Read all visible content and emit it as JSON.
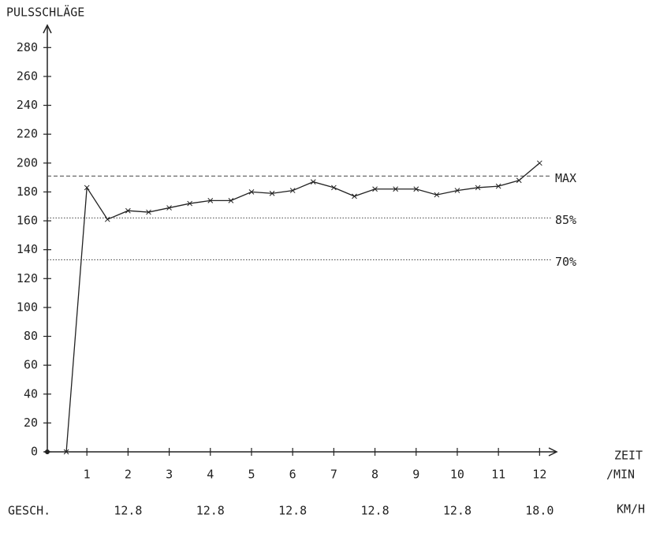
{
  "chart_data": {
    "type": "line",
    "title": "PULSSCHLÄGE",
    "xlabel": [
      "ZEIT",
      "/MIN"
    ],
    "x": [
      0.5,
      1,
      1.5,
      2,
      2.5,
      3,
      3.5,
      4,
      4.5,
      5,
      5.5,
      6,
      6.5,
      7,
      7.5,
      8,
      8.5,
      9,
      9.5,
      10,
      10.5,
      11,
      11.5,
      12
    ],
    "series": [
      {
        "name": "Puls",
        "color": "#222222",
        "values": [
          0,
          183,
          161,
          167,
          166,
          169,
          172,
          174,
          174,
          180,
          179,
          181,
          187,
          183,
          177,
          182,
          182,
          182,
          178,
          181,
          183,
          184,
          188,
          200
        ]
      }
    ],
    "xlim": [
      0,
      12.3
    ],
    "xticks": [
      1,
      2,
      3,
      4,
      5,
      6,
      7,
      8,
      9,
      10,
      11,
      12
    ],
    "ylim": [
      0,
      290
    ],
    "yticks": [
      0,
      20,
      40,
      60,
      80,
      100,
      120,
      140,
      160,
      180,
      200,
      220,
      240,
      260,
      280
    ],
    "reference_lines": [
      {
        "value": 191,
        "label": "MAX",
        "style": "dashed"
      },
      {
        "value": 162,
        "label": "85%",
        "style": "dotted"
      },
      {
        "value": 133,
        "label": "70%",
        "style": "dotted"
      }
    ],
    "speed_row": {
      "label": "GESCH.",
      "values": [
        "12.8",
        "12.8",
        "12.8",
        "12.8",
        "12.8",
        "18.0"
      ],
      "unit": "KM/H"
    }
  }
}
